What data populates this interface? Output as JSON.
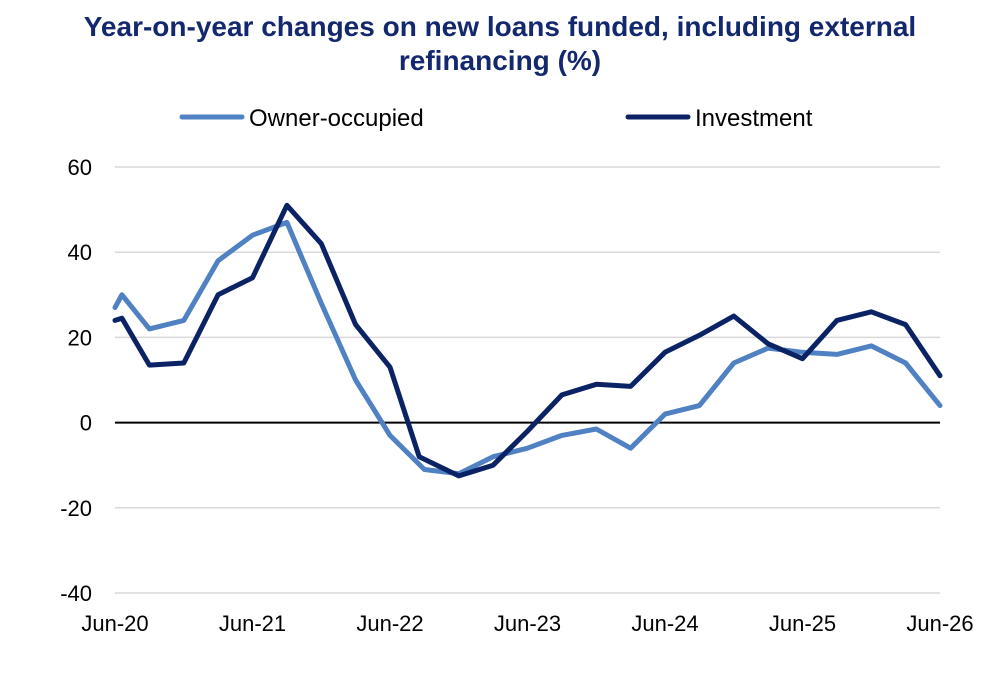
{
  "chart_data": {
    "type": "line",
    "title_line1": "Year-on-year changes on new loans funded, including external",
    "title_line2": "refinancing (%)",
    "xlabel": "",
    "ylabel": "",
    "ylim": [
      -40,
      60
    ],
    "yticks": [
      "60",
      "40",
      "20",
      "0",
      "-20",
      "-40"
    ],
    "ytick_values": [
      60,
      40,
      20,
      0,
      -20,
      -40
    ],
    "x_ticks": [
      "Jun-20",
      "Jun-21",
      "Jun-22",
      "Jun-23",
      "Jun-24",
      "Jun-25",
      "Jun-26"
    ],
    "x_tick_positions": [
      0,
      4,
      8,
      12,
      16,
      20,
      24
    ],
    "xlim": [
      0,
      24
    ],
    "grid": true,
    "legend_position": "top",
    "series": [
      {
        "name": "Owner-occupied",
        "color": "#4f81c3",
        "x": [
          0,
          0.2,
          1,
          2,
          3,
          4,
          5,
          6,
          7,
          8,
          9,
          10,
          11,
          12,
          13,
          14,
          15,
          16,
          17,
          18,
          19,
          20,
          21,
          22,
          23,
          24
        ],
        "values": [
          27,
          30,
          22,
          24,
          38,
          44,
          47,
          28,
          10,
          -3,
          -11,
          -12,
          -8,
          -6,
          -3,
          -1.5,
          -6,
          2,
          4,
          14,
          17.5,
          16.5,
          16,
          18,
          14,
          4
        ]
      },
      {
        "name": "Investment",
        "color": "#0b2265",
        "x": [
          0,
          0.2,
          1,
          2,
          3,
          4,
          5,
          6,
          7,
          8,
          8.85,
          10,
          11,
          12,
          13,
          14,
          15,
          16,
          17,
          18,
          19,
          20,
          21,
          22,
          23,
          24
        ],
        "values": [
          24,
          24.5,
          13.5,
          14,
          30,
          34,
          51,
          42,
          23,
          13,
          -8,
          -12.5,
          -10,
          -2,
          6.5,
          9,
          8.5,
          16.5,
          20.5,
          25,
          18.5,
          15,
          24,
          26,
          23,
          11
        ]
      }
    ]
  }
}
